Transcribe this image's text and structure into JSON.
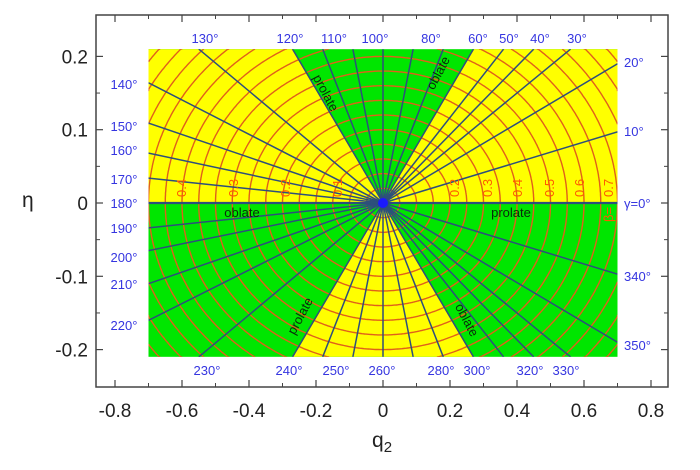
{
  "chart_data": {
    "type": "diagram",
    "xlabel": "q",
    "xlabel_sub": "2",
    "ylabel": "η",
    "xlim": [
      -0.85,
      0.85
    ],
    "ylim": [
      -0.25,
      0.245
    ],
    "region": {
      "q2": [
        -0.7,
        0.7
      ],
      "eta": [
        -0.21,
        0.21
      ]
    },
    "x_ticks": [
      "-0.8",
      "-0.6",
      "-0.4",
      "-0.2",
      "0",
      "0.2",
      "0.4",
      "0.6",
      "0.8"
    ],
    "x_tick_values": [
      -0.8,
      -0.6,
      -0.4,
      -0.2,
      0,
      0.2,
      0.4,
      0.6,
      0.8
    ],
    "y_ticks": [
      "0.2",
      "0.1",
      "0",
      "-0.1",
      "-0.2"
    ],
    "y_tick_values": [
      0.2,
      0.1,
      0,
      -0.1,
      -0.2
    ],
    "colors": {
      "yellow": "#ffff00",
      "green": "#00e600",
      "beta_line": "#e0601a",
      "gamma_line": "#2d4f7c",
      "gamma_label": "#3535e0"
    },
    "beta_values": [
      0.05,
      0.1,
      0.15,
      0.2,
      0.25,
      0.3,
      0.35,
      0.4,
      0.45,
      0.5,
      0.55,
      0.6,
      0.65,
      0.7,
      0.75,
      0.8,
      0.85,
      0.9,
      0.95,
      1.0
    ],
    "gamma_lines": [
      {
        "gamma": 0,
        "end": [
          0.7,
          0
        ]
      },
      {
        "gamma": 10,
        "end": [
          0.7,
          0.097
        ]
      },
      {
        "gamma": 20,
        "end": [
          0.7,
          0.19
        ]
      },
      {
        "gamma": 30,
        "end": [
          0.56,
          0.21
        ]
      },
      {
        "gamma": 40,
        "end": [
          0.45,
          0.21
        ]
      },
      {
        "gamma": 50,
        "end": [
          0.36,
          0.21
        ]
      },
      {
        "gamma": 60,
        "end": [
          0.27,
          0.21
        ]
      },
      {
        "gamma": 70,
        "end": [
          0.18,
          0.21
        ]
      },
      {
        "gamma": 80,
        "end": [
          0.09,
          0.21
        ]
      },
      {
        "gamma": 90,
        "end": [
          0.0,
          0.21
        ]
      },
      {
        "gamma": 100,
        "end": [
          -0.09,
          0.21
        ]
      },
      {
        "gamma": 110,
        "end": [
          -0.18,
          0.21
        ]
      },
      {
        "gamma": 120,
        "end": [
          -0.27,
          0.21
        ]
      },
      {
        "gamma": 130,
        "end": [
          -0.55,
          0.21
        ]
      },
      {
        "gamma": 140,
        "end": [
          -0.7,
          0.164
        ]
      },
      {
        "gamma": 150,
        "end": [
          -0.7,
          0.109
        ]
      },
      {
        "gamma": 160,
        "end": [
          -0.7,
          0.068
        ]
      },
      {
        "gamma": 170,
        "end": [
          -0.7,
          0.034
        ]
      },
      {
        "gamma": 180,
        "end": [
          -0.7,
          0
        ]
      },
      {
        "gamma": 190,
        "end": [
          -0.7,
          -0.034
        ]
      },
      {
        "gamma": 200,
        "end": [
          -0.7,
          -0.065
        ]
      },
      {
        "gamma": 210,
        "end": [
          -0.7,
          -0.11
        ]
      },
      {
        "gamma": 220,
        "end": [
          -0.7,
          -0.16
        ]
      },
      {
        "gamma": 230,
        "end": [
          -0.55,
          -0.21
        ]
      },
      {
        "gamma": 240,
        "end": [
          -0.27,
          -0.21
        ]
      },
      {
        "gamma": 250,
        "end": [
          -0.18,
          -0.21
        ]
      },
      {
        "gamma": 260,
        "end": [
          -0.09,
          -0.21
        ]
      },
      {
        "gamma": 270,
        "end": [
          0.0,
          -0.21
        ]
      },
      {
        "gamma": 280,
        "end": [
          0.09,
          -0.21
        ]
      },
      {
        "gamma": 290,
        "end": [
          0.18,
          -0.21
        ]
      },
      {
        "gamma": 300,
        "end": [
          0.27,
          -0.21
        ]
      },
      {
        "gamma": 310,
        "end": [
          0.36,
          -0.21
        ]
      },
      {
        "gamma": 320,
        "end": [
          0.45,
          -0.21
        ]
      },
      {
        "gamma": 330,
        "end": [
          0.56,
          -0.21
        ]
      },
      {
        "gamma": 340,
        "end": [
          0.7,
          -0.19
        ]
      },
      {
        "gamma": 350,
        "end": [
          0.7,
          -0.097
        ]
      }
    ],
    "yellow_sectors": [
      [
        0,
        60
      ],
      [
        120,
        180
      ],
      [
        240,
        300
      ]
    ],
    "gamma_labels": {
      "top": [
        "130°",
        "120°",
        "110°",
        "100°",
        "80°",
        "60°",
        "50°",
        "40°",
        "30°"
      ],
      "right": [
        "20°",
        "10°",
        "γ=0°",
        "340°",
        "350°"
      ],
      "left": [
        "140°",
        "150°",
        "160°",
        "170°",
        "180°",
        "190°",
        "200°",
        "210°",
        "220°"
      ],
      "bottom": [
        "230°",
        "240°",
        "250°",
        "260°",
        "280°",
        "300°",
        "320°",
        "330°"
      ]
    },
    "beta_labels": {
      "left": [
        "0.4",
        "0.3",
        "0.2",
        "0.1"
      ],
      "right": [
        "0.2",
        "0.3",
        "0.4",
        "0.5",
        "0.6",
        "0.7"
      ],
      "prefix": "β="
    },
    "shape_labels": {
      "prolate_120": "prolate",
      "oblate_60": "oblate",
      "oblate_180": "oblate",
      "prolate_0": "prolate",
      "prolate_240": "prolate",
      "oblate_300": "oblate"
    }
  }
}
